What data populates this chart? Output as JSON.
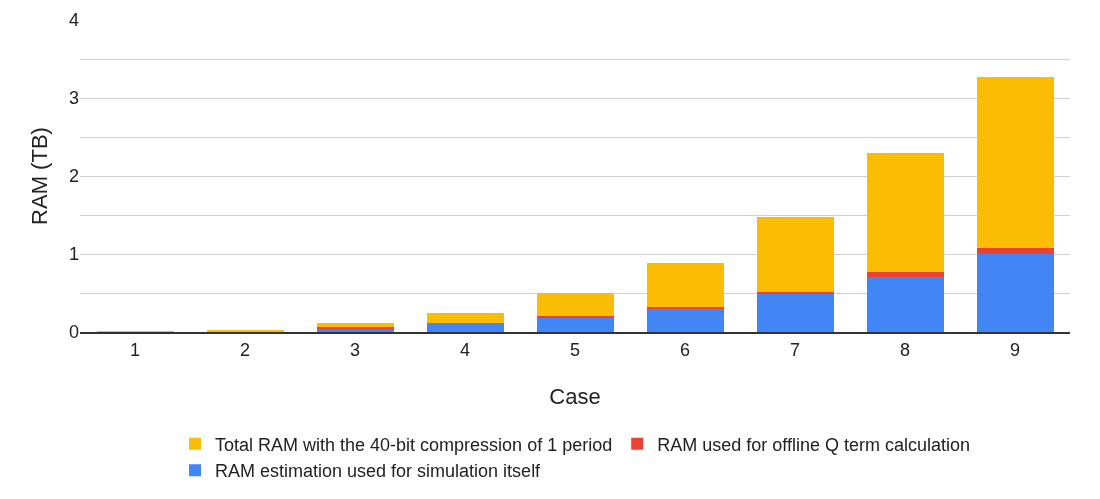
{
  "chart_data": {
    "type": "bar",
    "stacked": true,
    "xlabel": "Case",
    "ylabel": "RAM (TB)",
    "categories": [
      "1",
      "2",
      "3",
      "4",
      "5",
      "6",
      "7",
      "8",
      "9"
    ],
    "series": [
      {
        "name": "RAM estimation used for simulation itself",
        "color": "#4285f4",
        "values": [
          0,
          0,
          0.04,
          0.11,
          0.18,
          0.29,
          0.49,
          0.7,
          1.0
        ]
      },
      {
        "name": "RAM used for offline Q term calculation",
        "color": "#ea4335",
        "values": [
          0,
          0,
          0.02,
          0,
          0.02,
          0.03,
          0.02,
          0.07,
          0.08
        ]
      },
      {
        "name": "Total RAM with the 40-bit compression of 1 period",
        "color": "#fbbc04",
        "values": [
          0.01,
          0.03,
          0.05,
          0.13,
          0.3,
          0.56,
          0.97,
          1.52,
          2.19
        ]
      }
    ],
    "ylim": [
      0,
      4
    ],
    "yticks": [
      0,
      {
        "value": 0.5,
        "label": null
      },
      1,
      {
        "value": 1.5,
        "label": null
      },
      2,
      {
        "value": 2.5,
        "label": null
      },
      3,
      {
        "value": 3.5,
        "label": null
      },
      4
    ],
    "grid": "y",
    "legend": "bottom"
  }
}
